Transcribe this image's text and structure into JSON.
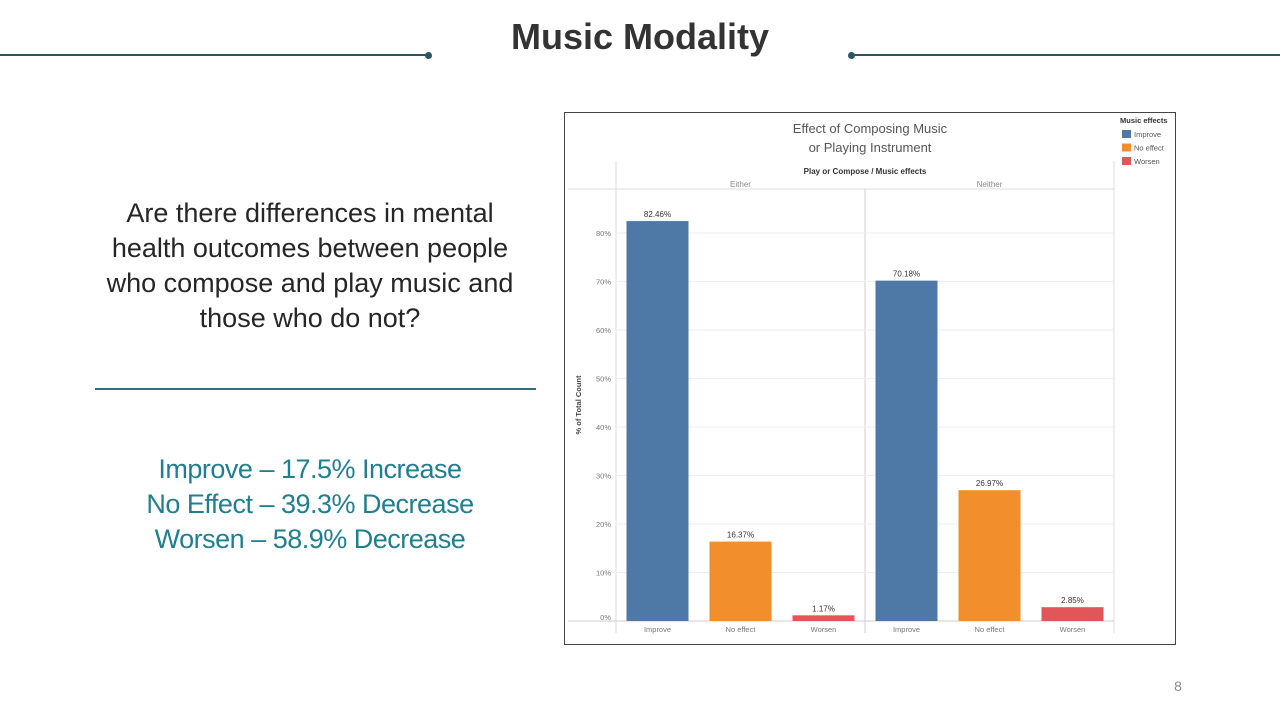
{
  "slide": {
    "title": "Music Modality",
    "question": "Are there differences in mental health outcomes between people who compose and play music and those who do not?",
    "findings": [
      "Improve – 17.5% Increase",
      "No Effect – 39.3% Decrease",
      "Worsen – 58.9% Decrease"
    ],
    "page_number": "8"
  },
  "chart_data": {
    "type": "bar",
    "title": "Effect of Composing Music or Playing Instrument",
    "title_lines": [
      "Effect of Composing Music",
      "or Playing Instrument"
    ],
    "column_header": "Play or Compose / Music effects",
    "ylabel": "% of Total Count",
    "ylim": [
      0,
      85
    ],
    "yticks": [
      {
        "value": 0,
        "label": "0%"
      },
      {
        "value": 10,
        "label": "10%"
      },
      {
        "value": 20,
        "label": "20%"
      },
      {
        "value": 30,
        "label": "30%"
      },
      {
        "value": 40,
        "label": "40%"
      },
      {
        "value": 50,
        "label": "50%"
      },
      {
        "value": 60,
        "label": "60%"
      },
      {
        "value": 70,
        "label": "70%"
      },
      {
        "value": 80,
        "label": "80%"
      }
    ],
    "groups": [
      {
        "name": "Either",
        "categories": [
          "Improve",
          "No effect",
          "Worsen"
        ],
        "values": [
          82.46,
          16.37,
          1.17
        ],
        "labels": [
          "82.46%",
          "16.37%",
          "1.17%"
        ]
      },
      {
        "name": "Neither",
        "categories": [
          "Improve",
          "No effect",
          "Worsen"
        ],
        "values": [
          70.18,
          26.97,
          2.85
        ],
        "labels": [
          "70.18%",
          "26.97%",
          "2.85%"
        ]
      }
    ],
    "legend": {
      "title": "Music effects",
      "placement": "top-right",
      "items": [
        {
          "label": "Improve",
          "color": "#4e79a7"
        },
        {
          "label": "No effect",
          "color": "#f28e2b"
        },
        {
          "label": "Worsen",
          "color": "#e15759"
        }
      ]
    },
    "grid": true
  }
}
